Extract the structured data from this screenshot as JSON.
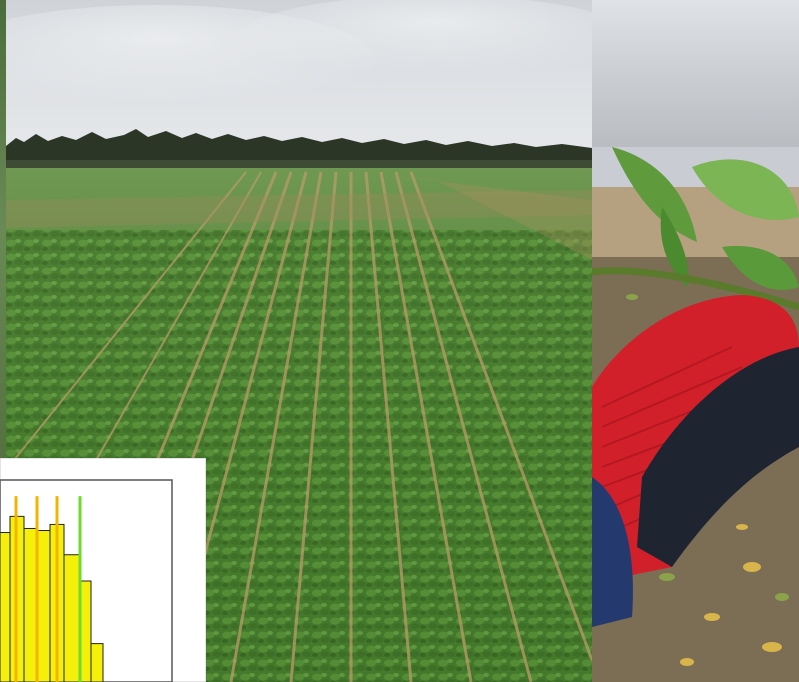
{
  "scene": {
    "left_photo": "field-photo",
    "right_photo": "hand-photo",
    "inset": "histogram-inset"
  },
  "colors": {
    "sky": "#d7dade",
    "tree_line": "#2f3a2a",
    "crop_green": "#4f8a34",
    "crop_dark": "#3a6d27",
    "stubble": "#b59a6a",
    "glove_red": "#d2202a",
    "glove_black": "#1e2530",
    "soil": "#8a7a62",
    "histogram_bar": "#f5f00a",
    "histogram_marker_green": "#6ddc2e",
    "histogram_marker_orange": "#f2b400"
  },
  "histogram": {
    "bar_levels": [
      0.74,
      0.82,
      0.76,
      0.75,
      0.78,
      0.63,
      0.5,
      0.19
    ],
    "marker_levels": [
      0.92,
      0.92,
      0.92,
      0.92
    ],
    "green_marker_level": 0.92
  }
}
